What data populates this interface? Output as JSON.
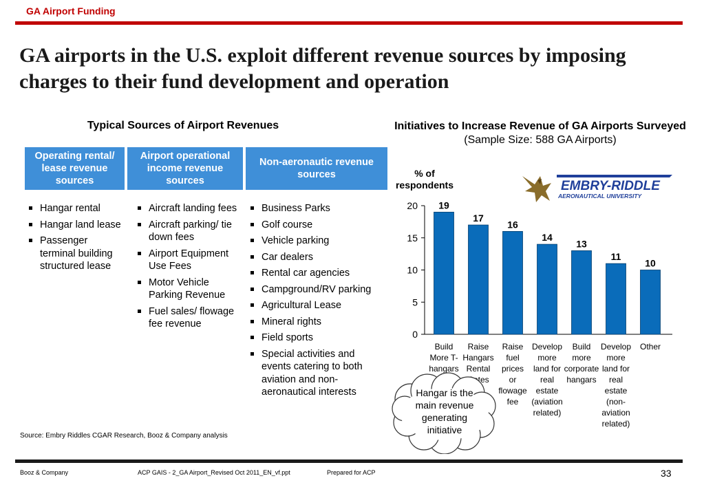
{
  "header": {
    "section": "GA Airport Funding"
  },
  "title": "GA airports in the U.S. exploit different revenue sources by imposing charges to their fund development and operation",
  "left_panel": {
    "heading": "Typical Sources of Airport Revenues",
    "columns": [
      {
        "header": "Operating rental/ lease revenue sources",
        "items": [
          "Hangar rental",
          "Hangar land lease",
          "Passenger terminal building structured lease"
        ]
      },
      {
        "header": "Airport operational income revenue sources",
        "items": [
          "Aircraft landing fees",
          "Aircraft parking/ tie down fees",
          "Airport Equipment Use Fees",
          "Motor Vehicle Parking Revenue",
          "Fuel sales/ flowage fee revenue"
        ]
      },
      {
        "header": "Non-aeronautic revenue sources",
        "items": [
          "Business Parks",
          "Golf course",
          "Vehicle parking",
          "Car dealers",
          "Rental car agencies",
          "Campground/RV parking",
          "Agricultural Lease",
          "Mineral rights",
          "Field sports",
          "Special activities and events catering to both aviation and non-aeronautical interests"
        ]
      }
    ]
  },
  "right_panel": {
    "heading": "Initiatives to Increase Revenue of GA Airports Surveyed",
    "subheading": "(Sample Size: 588 GA Airports)",
    "logo": {
      "line1": "EMBRY-RIDDLE",
      "line2": "AERONAUTICAL UNIVERSITY",
      "icon": "eagle-icon"
    }
  },
  "chart_data": {
    "type": "bar",
    "title": "Initiatives to Increase Revenue of GA Airports Surveyed",
    "ylabel": "% of respondents",
    "ylim": [
      0,
      20
    ],
    "yticks": [
      0,
      5,
      10,
      15,
      20
    ],
    "categories": [
      [
        "Build",
        "More T-",
        "hangars"
      ],
      [
        "Raise",
        "Hangars",
        "Rental",
        "Rates"
      ],
      [
        "Raise",
        "fuel",
        "prices",
        "or",
        "flowage",
        "fee"
      ],
      [
        "Develop",
        "more",
        "land for",
        "real",
        "estate",
        "(aviation",
        "related)"
      ],
      [
        "Build",
        "more",
        "corporate",
        "hangars"
      ],
      [
        "Develop",
        "more",
        "land for",
        "real",
        "estate",
        "(non-",
        "aviation",
        "related)"
      ],
      [
        "Other"
      ]
    ],
    "values": [
      19,
      17,
      16,
      14,
      13,
      11,
      10
    ],
    "bar_color": "#0a6cba",
    "callout": "Hangar is the main revenue generating initiative"
  },
  "source": "Source:   Embry Riddles CGAR Research, Booz & Company analysis",
  "footer": {
    "company": "Booz & Company",
    "file": "ACP GAIS - 2_GA Airport_Revised Oct 2011_EN_vf.ppt",
    "prepared": "Prepared for ACP",
    "page": "33"
  }
}
